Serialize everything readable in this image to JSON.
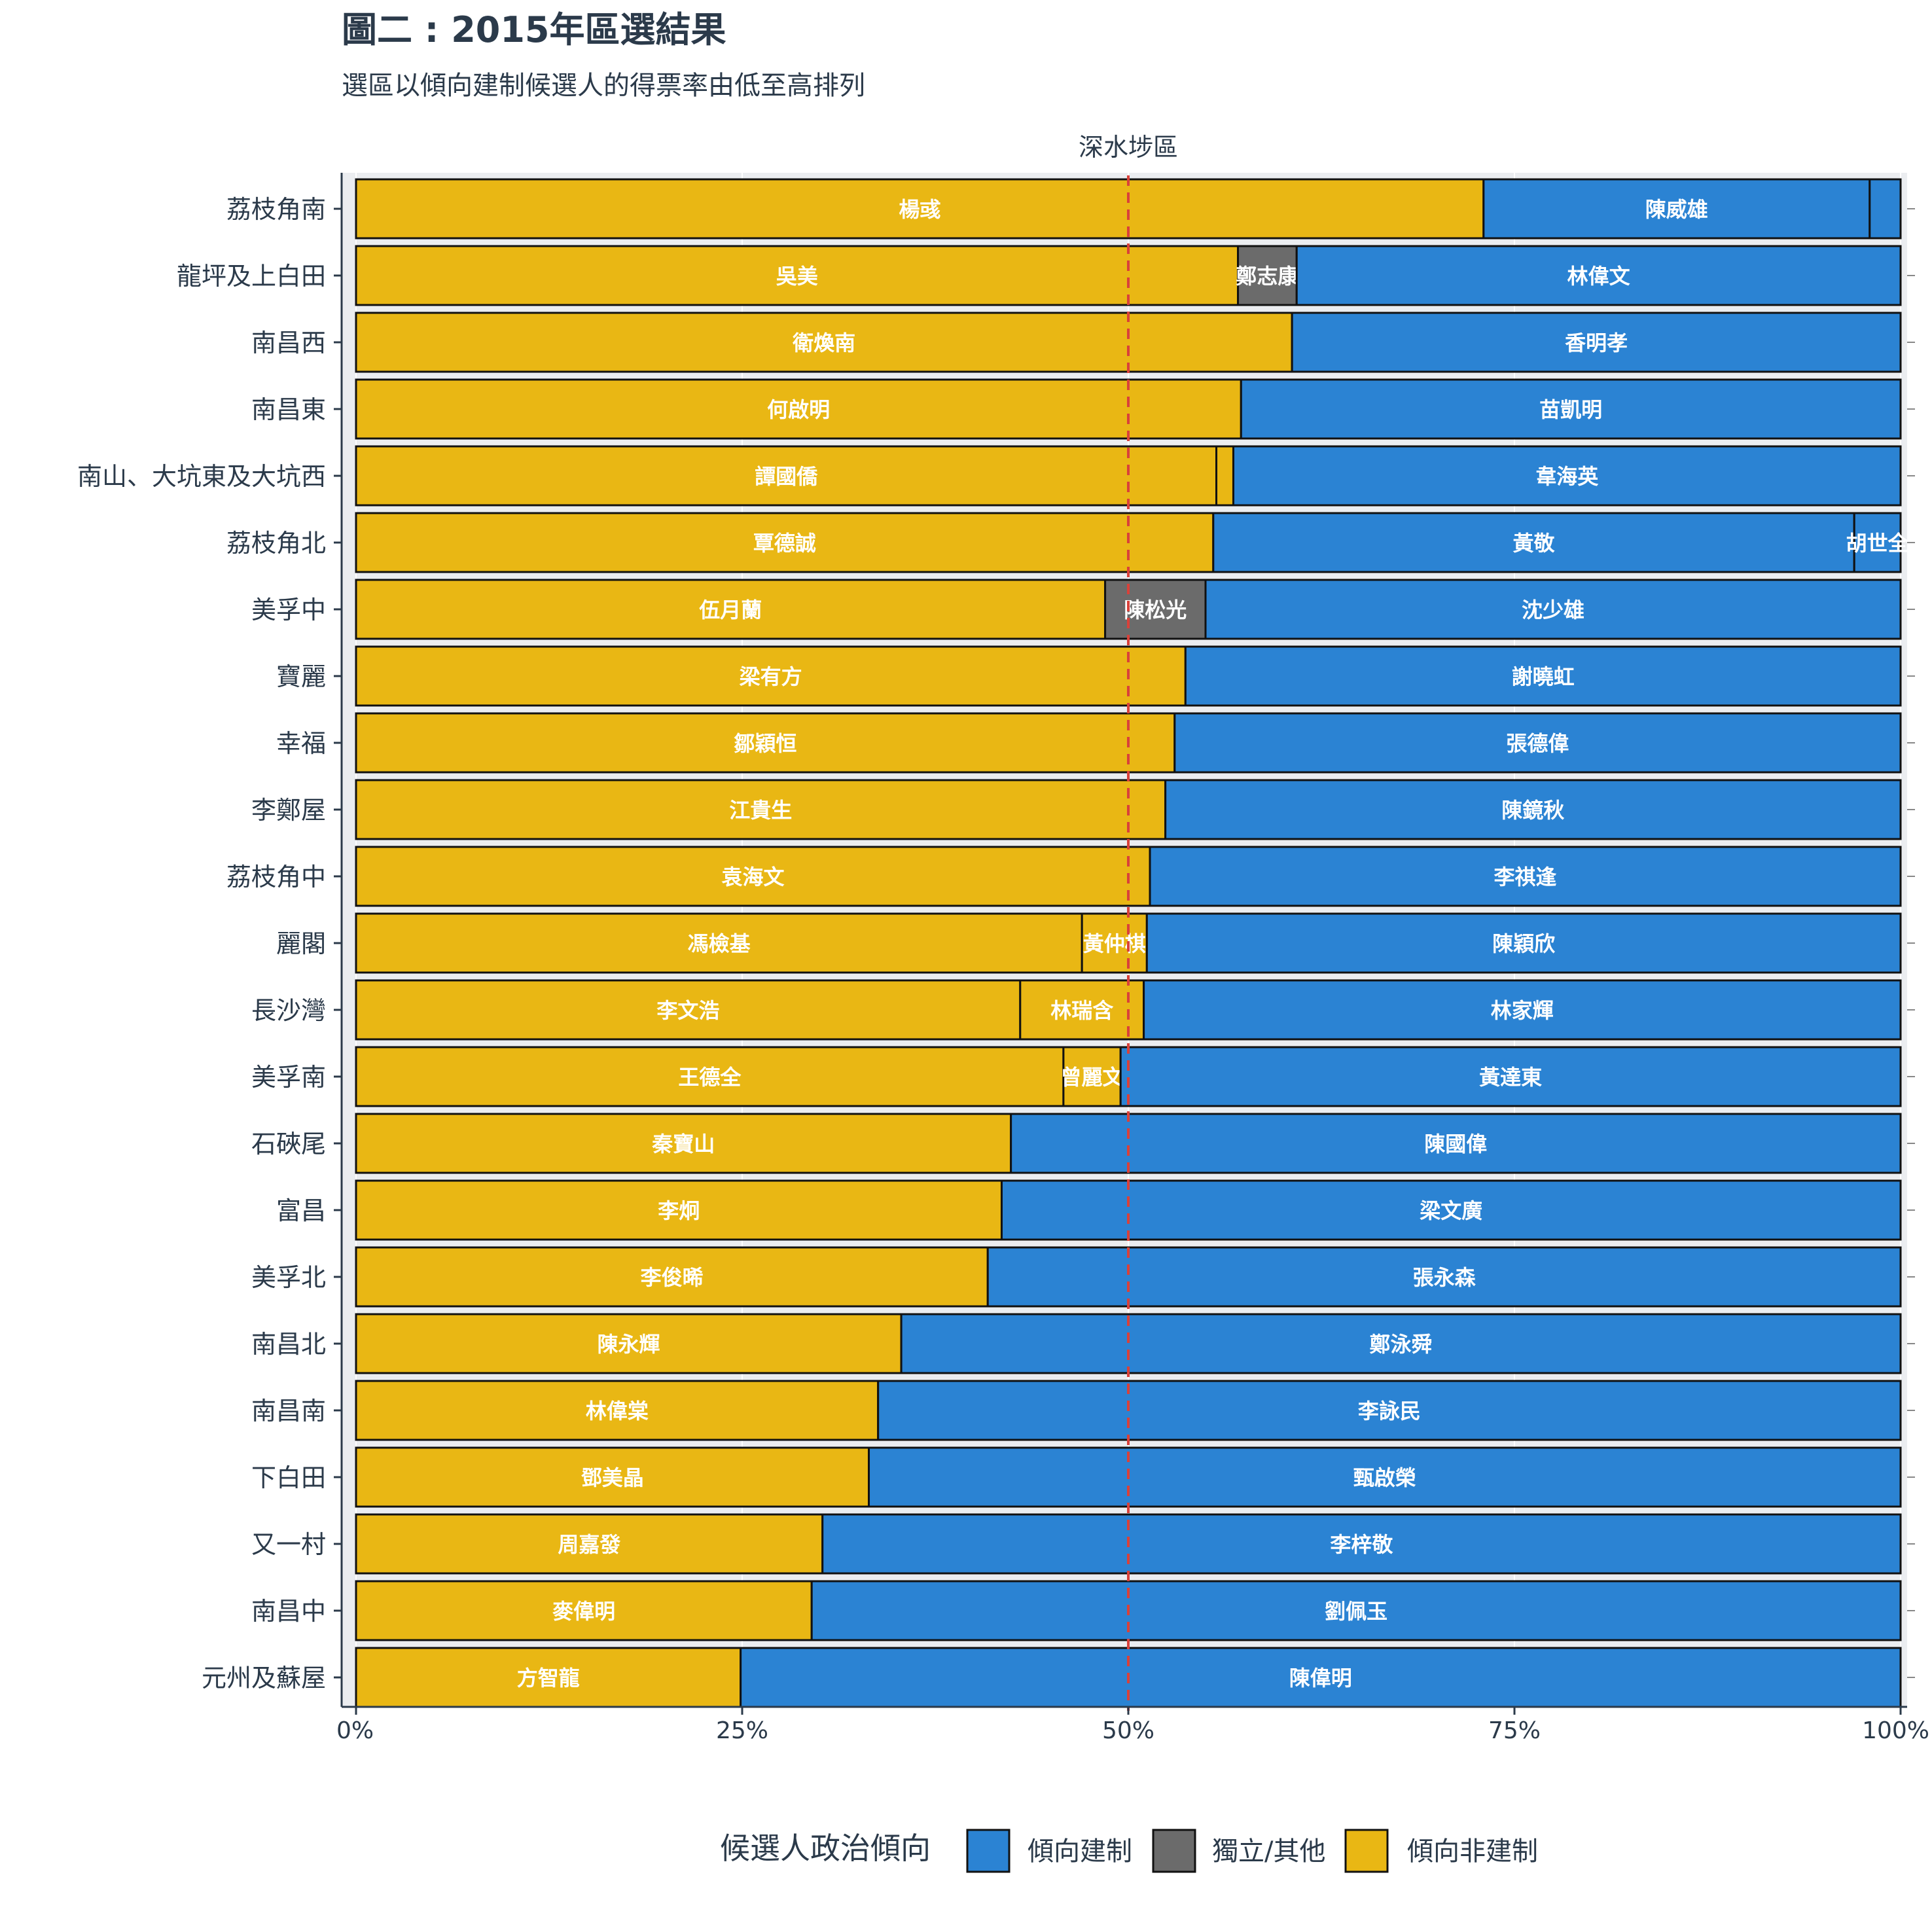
{
  "chart_data": {
    "type": "bar",
    "orientation": "horizontal-stacked-100",
    "title": "圖二 : 2015年區選結果",
    "subtitle": "選區以傾向建制候選人的得票率由低至高排列",
    "facet_label": "深水埗區",
    "x_ticks": [
      "0%",
      "25%",
      "50%",
      "75%",
      "100%"
    ],
    "xlim": [
      0,
      100
    ],
    "reference_line": 50,
    "legend": {
      "title": "候選人政治傾向",
      "entries": [
        {
          "key": "pro",
          "label": "傾向建制",
          "color": "#2b83d3"
        },
        {
          "key": "ind",
          "label": "獨立/其他",
          "color": "#6b6b6b"
        },
        {
          "key": "non",
          "label": "傾向非建制",
          "color": "#e9b714"
        }
      ]
    },
    "districts": [
      {
        "name": "荔枝角南",
        "segments": [
          {
            "camp": "non",
            "name": "楊彧",
            "pct": 73.0
          },
          {
            "camp": "pro",
            "name": "陳威雄",
            "pct": 25.0
          },
          {
            "camp": "pro",
            "name": "",
            "pct": 2.0
          }
        ]
      },
      {
        "name": "龍坪及上白田",
        "segments": [
          {
            "camp": "non",
            "name": "吳美",
            "pct": 57.1
          },
          {
            "camp": "ind",
            "name": "鄭志康",
            "pct": 3.8
          },
          {
            "camp": "pro",
            "name": "林偉文",
            "pct": 39.1
          }
        ]
      },
      {
        "name": "南昌西",
        "segments": [
          {
            "camp": "non",
            "name": "衛煥南",
            "pct": 60.6
          },
          {
            "camp": "pro",
            "name": "香明孝",
            "pct": 39.4
          }
        ]
      },
      {
        "name": "南昌東",
        "segments": [
          {
            "camp": "non",
            "name": "何啟明",
            "pct": 57.3
          },
          {
            "camp": "pro",
            "name": "苗凱明",
            "pct": 42.7
          }
        ]
      },
      {
        "name": "南山、大坑東及大坑西",
        "segments": [
          {
            "camp": "non",
            "name": "譚國僑",
            "pct": 55.7
          },
          {
            "camp": "non",
            "name": "",
            "pct": 1.1
          },
          {
            "camp": "pro",
            "name": "韋海英",
            "pct": 43.2
          }
        ]
      },
      {
        "name": "荔枝角北",
        "segments": [
          {
            "camp": "non",
            "name": "覃德誠",
            "pct": 55.5
          },
          {
            "camp": "pro",
            "name": "黃敬",
            "pct": 41.5
          },
          {
            "camp": "pro",
            "name": "胡世全",
            "pct": 3.0
          }
        ]
      },
      {
        "name": "美孚中",
        "segments": [
          {
            "camp": "non",
            "name": "伍月蘭",
            "pct": 48.5
          },
          {
            "camp": "ind",
            "name": "陳松光",
            "pct": 6.5
          },
          {
            "camp": "pro",
            "name": "沈少雄",
            "pct": 45.0
          }
        ]
      },
      {
        "name": "寶麗",
        "segments": [
          {
            "camp": "non",
            "name": "梁有方",
            "pct": 53.7
          },
          {
            "camp": "pro",
            "name": "謝曉虹",
            "pct": 46.3
          }
        ]
      },
      {
        "name": "幸福",
        "segments": [
          {
            "camp": "non",
            "name": "鄒穎恒",
            "pct": 53.0
          },
          {
            "camp": "pro",
            "name": "張德偉",
            "pct": 47.0
          }
        ]
      },
      {
        "name": "李鄭屋",
        "segments": [
          {
            "camp": "non",
            "name": "江貴生",
            "pct": 52.4
          },
          {
            "camp": "pro",
            "name": "陳鏡秋",
            "pct": 47.6
          }
        ]
      },
      {
        "name": "荔枝角中",
        "segments": [
          {
            "camp": "non",
            "name": "袁海文",
            "pct": 51.4
          },
          {
            "camp": "pro",
            "name": "李祺逢",
            "pct": 48.6
          }
        ]
      },
      {
        "name": "麗閣",
        "segments": [
          {
            "camp": "non",
            "name": "馮檢基",
            "pct": 47.0
          },
          {
            "camp": "non",
            "name": "黃仲棋",
            "pct": 4.2
          },
          {
            "camp": "pro",
            "name": "陳穎欣",
            "pct": 48.8
          }
        ]
      },
      {
        "name": "長沙灣",
        "segments": [
          {
            "camp": "non",
            "name": "李文浩",
            "pct": 43.0
          },
          {
            "camp": "non",
            "name": "林瑞含",
            "pct": 8.0
          },
          {
            "camp": "pro",
            "name": "林家輝",
            "pct": 49.0
          }
        ]
      },
      {
        "name": "美孚南",
        "segments": [
          {
            "camp": "non",
            "name": "王德全",
            "pct": 45.8
          },
          {
            "camp": "non",
            "name": "曾麗文",
            "pct": 3.7
          },
          {
            "camp": "pro",
            "name": "黃達東",
            "pct": 50.5
          }
        ]
      },
      {
        "name": "石硤尾",
        "segments": [
          {
            "camp": "non",
            "name": "秦寶山",
            "pct": 42.4
          },
          {
            "camp": "pro",
            "name": "陳國偉",
            "pct": 57.6
          }
        ]
      },
      {
        "name": "富昌",
        "segments": [
          {
            "camp": "non",
            "name": "李炯",
            "pct": 41.8
          },
          {
            "camp": "pro",
            "name": "梁文廣",
            "pct": 58.2
          }
        ]
      },
      {
        "name": "美孚北",
        "segments": [
          {
            "camp": "non",
            "name": "李俊晞",
            "pct": 40.9
          },
          {
            "camp": "pro",
            "name": "張永森",
            "pct": 59.1
          }
        ]
      },
      {
        "name": "南昌北",
        "segments": [
          {
            "camp": "non",
            "name": "陳永輝",
            "pct": 35.3
          },
          {
            "camp": "pro",
            "name": "鄭泳舜",
            "pct": 64.7
          }
        ]
      },
      {
        "name": "南昌南",
        "segments": [
          {
            "camp": "non",
            "name": "林偉棠",
            "pct": 33.8
          },
          {
            "camp": "pro",
            "name": "李詠民",
            "pct": 66.2
          }
        ]
      },
      {
        "name": "下白田",
        "segments": [
          {
            "camp": "non",
            "name": "鄧美晶",
            "pct": 33.2
          },
          {
            "camp": "pro",
            "name": "甄啟榮",
            "pct": 66.8
          }
        ]
      },
      {
        "name": "又一村",
        "segments": [
          {
            "camp": "non",
            "name": "周嘉發",
            "pct": 30.2
          },
          {
            "camp": "pro",
            "name": "李梓敬",
            "pct": 69.8
          }
        ]
      },
      {
        "name": "南昌中",
        "segments": [
          {
            "camp": "non",
            "name": "麥偉明",
            "pct": 29.5
          },
          {
            "camp": "pro",
            "name": "劉佩玉",
            "pct": 70.5
          }
        ]
      },
      {
        "name": "元州及蘇屋",
        "segments": [
          {
            "camp": "non",
            "name": "方智龍",
            "pct": 24.9
          },
          {
            "camp": "pro",
            "name": "陳偉明",
            "pct": 75.1
          }
        ]
      }
    ]
  }
}
